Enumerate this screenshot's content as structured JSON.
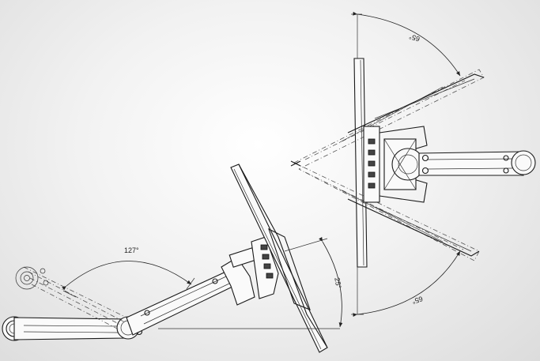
{
  "annotations": {
    "arm_angle": "127°",
    "tilt_angle": "25°",
    "swivel_top": "65°",
    "swivel_bottom": "65°"
  }
}
